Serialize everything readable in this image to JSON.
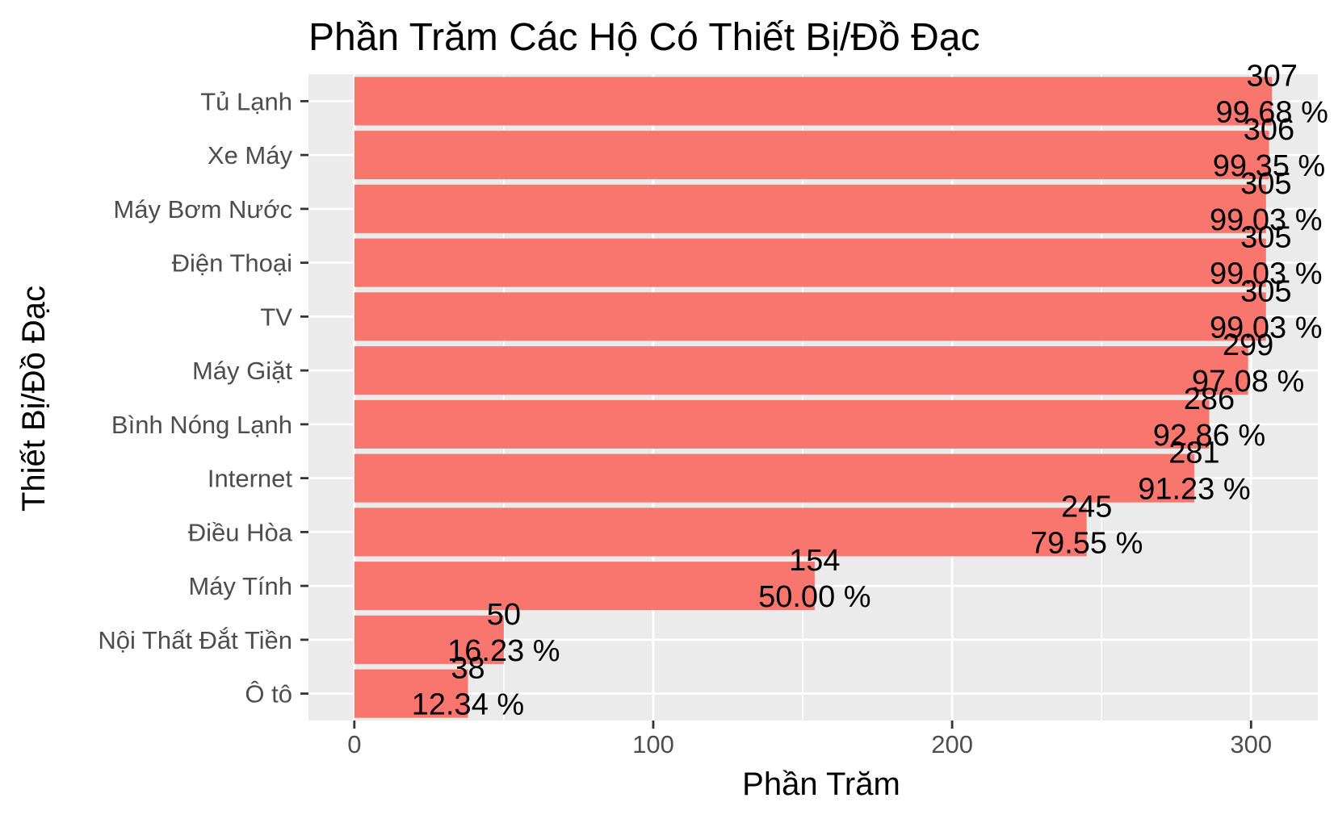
{
  "chart_data": {
    "type": "bar",
    "orientation": "horizontal",
    "title": "Phần Trăm Các Hộ Có Thiết Bị/Đồ Đạc",
    "xlabel": "Phần Trăm",
    "ylabel": "Thiết Bị/Đồ Đạc",
    "categories": [
      "Tủ Lạnh",
      "Xe Máy",
      "Máy Bơm Nước",
      "Điện Thoại",
      "TV",
      "Máy Giặt",
      "Bình Nóng Lạnh",
      "Internet",
      "Điều Hòa",
      "Máy Tính",
      "Nội Thất Đắt Tiền",
      "Ô tô"
    ],
    "values": [
      307,
      306,
      305,
      305,
      305,
      299,
      286,
      281,
      245,
      154,
      50,
      38
    ],
    "labels": [
      [
        "307",
        "99.68 %"
      ],
      [
        "306",
        "99.35 %"
      ],
      [
        "305",
        "99.03 %"
      ],
      [
        "305",
        "99.03 %"
      ],
      [
        "305",
        "99.03 %"
      ],
      [
        "299",
        "97.08 %"
      ],
      [
        "286",
        "92.86 %"
      ],
      [
        "281",
        "91.23 %"
      ],
      [
        "245",
        "79.55 %"
      ],
      [
        "154",
        "50.00 %"
      ],
      [
        "50",
        "16.23 %"
      ],
      [
        "38",
        "12.34 %"
      ]
    ],
    "xticks": [
      "0",
      "100",
      "200",
      "300"
    ],
    "xtick_values": [
      0,
      100,
      200,
      300
    ],
    "xlim": [
      -15.35,
      322.35
    ],
    "grid": true,
    "legend": "none",
    "colors": {
      "bar": "#F8766D",
      "panel_background": "#EBEBEB",
      "grid": "#FFFFFF",
      "tick_text": "#4D4D4D",
      "tick_mark": "#333333"
    }
  }
}
